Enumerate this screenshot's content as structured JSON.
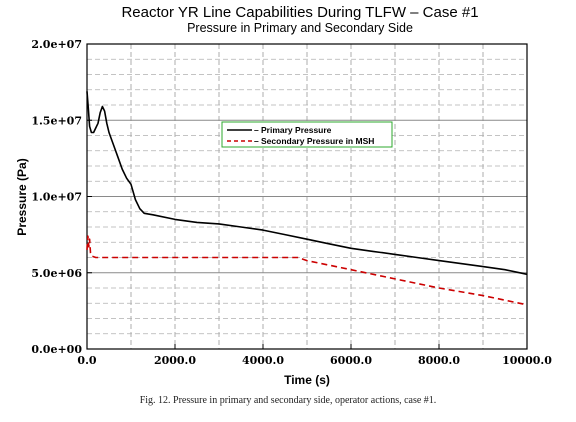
{
  "chart_data": {
    "type": "line",
    "title": "Reactor YR Line Capabilities During TLFW – Case #1",
    "subtitle": "Pressure in Primary and Secondary Side",
    "xlabel": "Time (s)",
    "ylabel": "Pressure (Pa)",
    "xlim": [
      0,
      10000
    ],
    "ylim": [
      0,
      20000000
    ],
    "x_ticks": [
      0,
      2000,
      4000,
      6000,
      8000,
      10000
    ],
    "x_tick_labels": [
      "0.0",
      "2000.0",
      "4000.0",
      "6000.0",
      "8000.0",
      "10000.0"
    ],
    "y_ticks": [
      0,
      5000000,
      10000000,
      15000000,
      20000000
    ],
    "y_tick_labels": [
      "0.0e+00",
      "5.0e+06",
      "1.0e+07",
      "1.5e+07",
      "2.0e+07"
    ],
    "grid": true,
    "legend_position": "upper-center",
    "series": [
      {
        "name": "Primary Pressure",
        "color": "#000000",
        "style": "solid",
        "x": [
          0,
          30,
          60,
          100,
          150,
          200,
          250,
          300,
          350,
          400,
          450,
          500,
          600,
          700,
          800,
          900,
          1000,
          1100,
          1200,
          1300,
          1500,
          2000,
          2500,
          3000,
          3500,
          4000,
          4500,
          5000,
          5500,
          6000,
          6500,
          7000,
          7500,
          8000,
          8500,
          9000,
          9500,
          10000
        ],
        "y": [
          16900000,
          15800000,
          14600000,
          14200000,
          14200000,
          14500000,
          14800000,
          15500000,
          15900000,
          15600000,
          14800000,
          14200000,
          13400000,
          12600000,
          11800000,
          11200000,
          10800000,
          9800000,
          9200000,
          8900000,
          8800000,
          8500000,
          8300000,
          8200000,
          8000000,
          7800000,
          7500000,
          7200000,
          6900000,
          6600000,
          6400000,
          6200000,
          6000000,
          5800000,
          5600000,
          5400000,
          5200000,
          4900000
        ]
      },
      {
        "name": "Secondary Pressure in MSH",
        "color": "#cc0000",
        "style": "dashed",
        "x": [
          0,
          20,
          40,
          60,
          80,
          100,
          150,
          200,
          1000,
          2000,
          3000,
          4000,
          4800,
          5000,
          6000,
          7000,
          8000,
          9000,
          10000
        ],
        "y": [
          6500000,
          7400000,
          6700000,
          7200000,
          6300000,
          6100000,
          6050000,
          6000000,
          6000000,
          6000000,
          6000000,
          6000000,
          6000000,
          5800000,
          5200000,
          4600000,
          4000000,
          3500000,
          2900000
        ]
      }
    ]
  },
  "caption": "Fig. 12. Pressure in primary and secondary side, operator actions, case #1."
}
